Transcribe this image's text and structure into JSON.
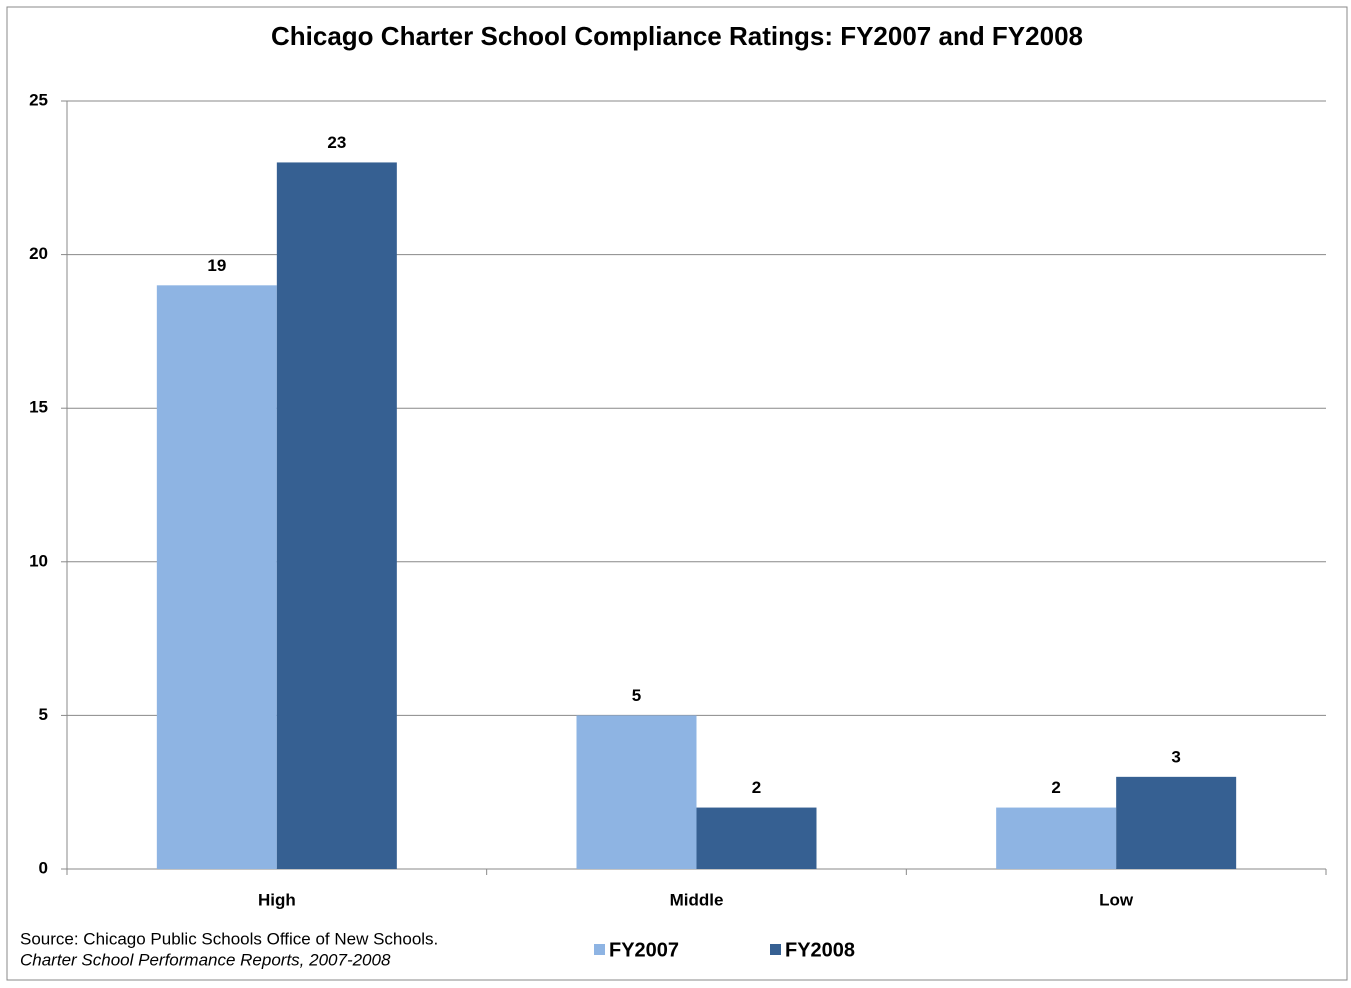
{
  "chart_data": {
    "type": "bar",
    "title": "Chicago Charter School Compliance Ratings: FY2007 and FY2008",
    "categories": [
      "High",
      "Middle",
      "Low"
    ],
    "series": [
      {
        "name": "FY2007",
        "color": "#8eb4e3",
        "values": [
          19,
          5,
          2
        ]
      },
      {
        "name": "FY2008",
        "color": "#366092",
        "values": [
          23,
          2,
          3
        ]
      }
    ],
    "ylim": [
      0,
      25
    ],
    "yticks": [
      0,
      5,
      10,
      15,
      20,
      25
    ],
    "grid": true,
    "source": "Source: Chicago Public Schools  Office of New Schools.",
    "source_detail": "Charter School Performance Reports, 2007-2008"
  }
}
